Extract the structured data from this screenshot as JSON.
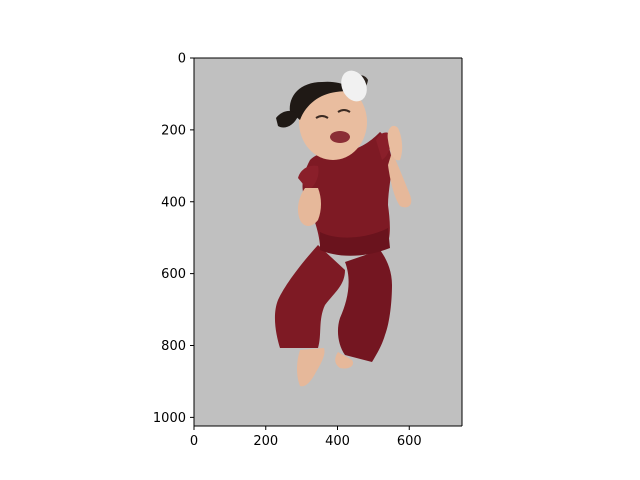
{
  "figure": {
    "image_subject": "crying toddler in dark red jumpsuit",
    "colors": {
      "background": "#ffffff",
      "image_background": "#c0c0c0",
      "outfit": "#7e1a24",
      "outfit_shadow": "#5a0f17",
      "skin": "#e6b89a",
      "hair": "#1f1915",
      "hair_bow": "#f1f1f1"
    }
  },
  "chart_data": {
    "type": "image",
    "x_ticks": [
      "0",
      "200",
      "400",
      "600"
    ],
    "y_ticks": [
      "0",
      "200",
      "400",
      "600",
      "800",
      "1000"
    ],
    "x_tick_values": [
      0,
      200,
      400,
      600
    ],
    "y_tick_values": [
      0,
      200,
      400,
      600,
      800,
      1000
    ],
    "xlim": [
      0,
      747
    ],
    "ylim": [
      1024,
      0
    ]
  }
}
